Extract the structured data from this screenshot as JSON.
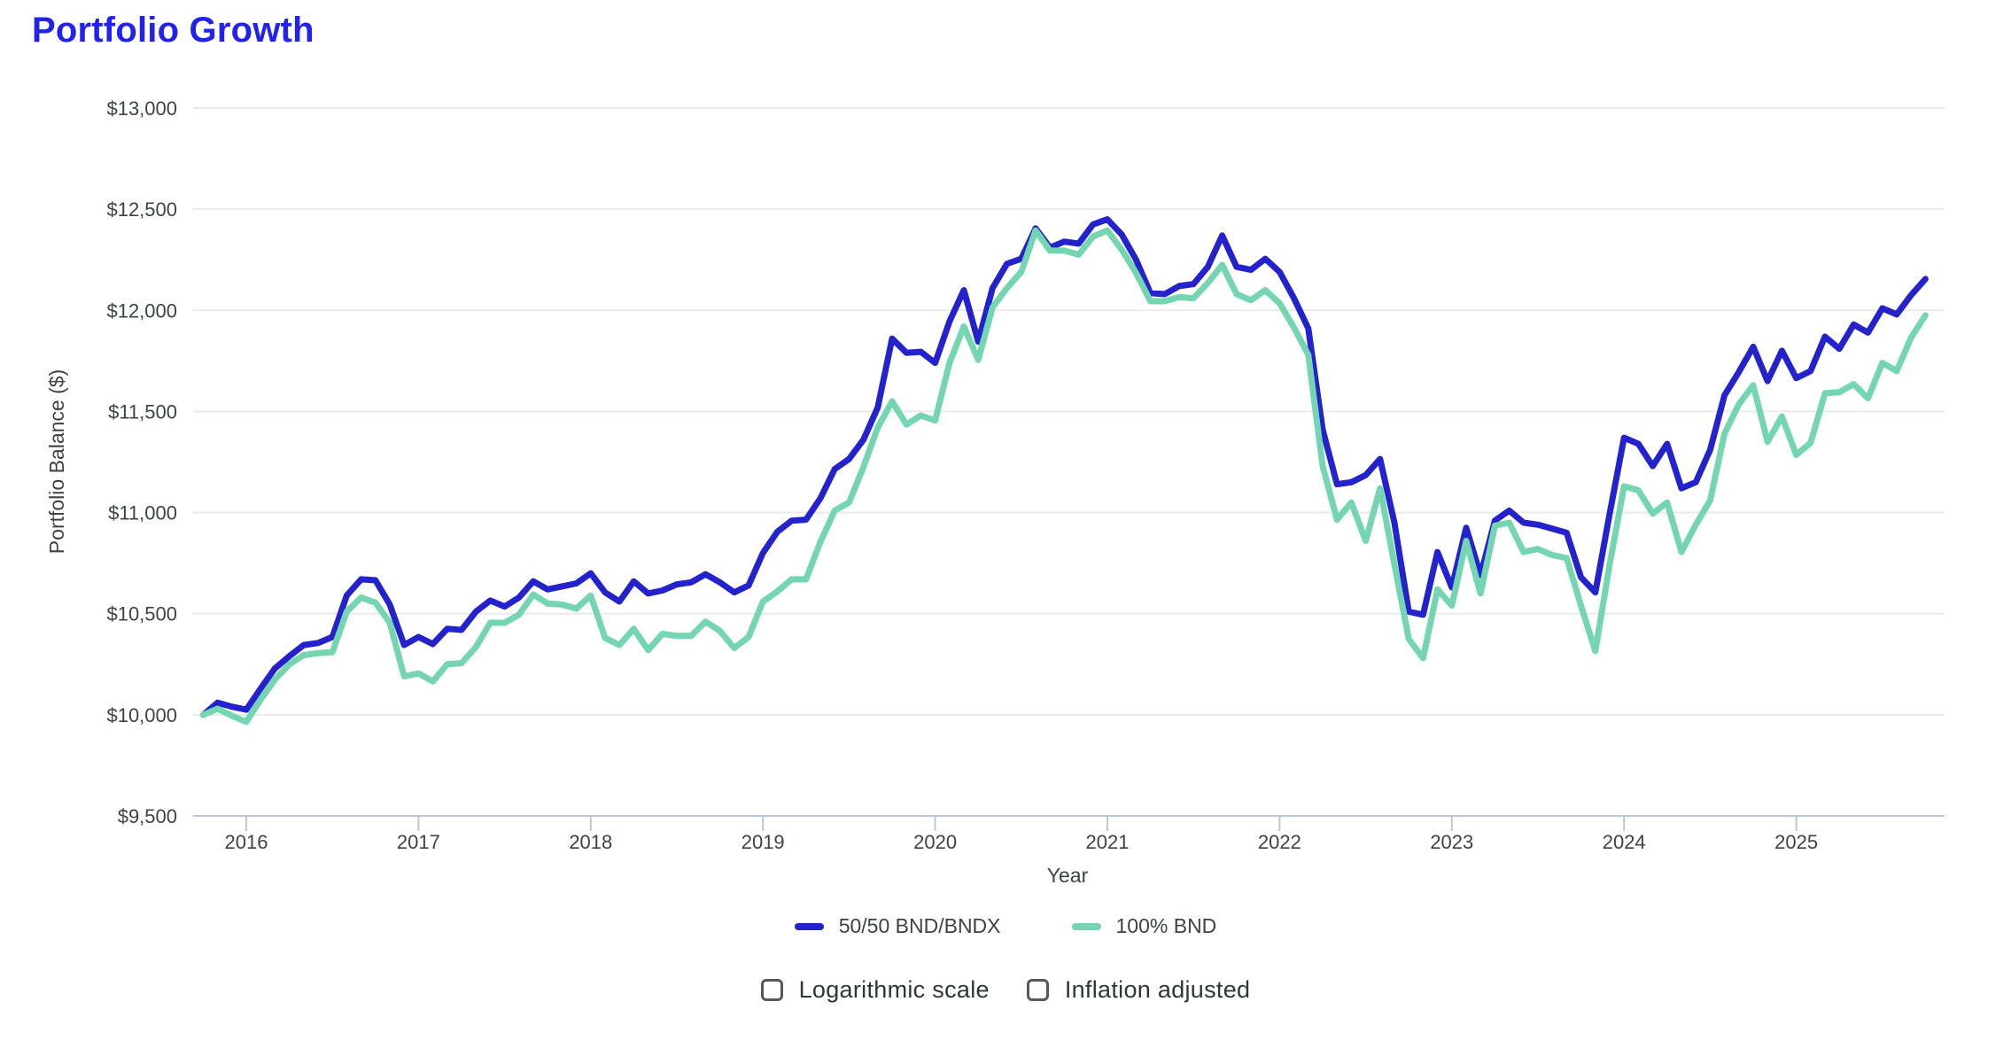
{
  "title": "Portfolio Growth",
  "colors": {
    "title": "#2222f0",
    "axis_text": "#3d4249",
    "axis_line": "#bac6dc",
    "grid_line": "#eaeaea",
    "background": "#ffffff",
    "series_blue": "#2322cd",
    "series_teal": "#73d6b0"
  },
  "chart_data": {
    "type": "line",
    "title": "Portfolio Growth",
    "xlabel": "Year",
    "ylabel": "Portfolio Balance ($)",
    "ylim": [
      9500,
      13000
    ],
    "grid": true,
    "legend_position": "bottom",
    "x_start": "2015-10",
    "x_end": "2025-10",
    "x_frequency": "monthly",
    "y_ticks": [
      {
        "value": 13000,
        "label": "$13,000"
      },
      {
        "value": 12500,
        "label": "$12,500"
      },
      {
        "value": 12000,
        "label": "$12,000"
      },
      {
        "value": 11500,
        "label": "$11,500"
      },
      {
        "value": 11000,
        "label": "$11,000"
      },
      {
        "value": 10500,
        "label": "$10,500"
      },
      {
        "value": 10000,
        "label": "$10,000"
      },
      {
        "value": 9500,
        "label": "$9,500"
      }
    ],
    "x_ticks": [
      {
        "index": 3,
        "label": "2016"
      },
      {
        "index": 15,
        "label": "2017"
      },
      {
        "index": 27,
        "label": "2018"
      },
      {
        "index": 39,
        "label": "2019"
      },
      {
        "index": 51,
        "label": "2020"
      },
      {
        "index": 63,
        "label": "2021"
      },
      {
        "index": 75,
        "label": "2022"
      },
      {
        "index": 87,
        "label": "2023"
      },
      {
        "index": 99,
        "label": "2024"
      },
      {
        "index": 111,
        "label": "2025"
      }
    ],
    "series": [
      {
        "name": "50/50 BND/BNDX",
        "color": "#2322cd",
        "values": [
          10000,
          10060,
          10040,
          10025,
          10130,
          10230,
          10290,
          10345,
          10355,
          10385,
          10590,
          10670,
          10665,
          10545,
          10345,
          10385,
          10350,
          10425,
          10420,
          10510,
          10565,
          10535,
          10580,
          10660,
          10620,
          10635,
          10650,
          10700,
          10605,
          10560,
          10660,
          10600,
          10615,
          10645,
          10655,
          10695,
          10655,
          10605,
          10640,
          10800,
          10905,
          10960,
          10965,
          11070,
          11215,
          11265,
          11360,
          11520,
          11860,
          11790,
          11795,
          11740,
          11945,
          12100,
          11845,
          12110,
          12230,
          12255,
          12405,
          12310,
          12340,
          12330,
          12425,
          12450,
          12375,
          12250,
          12085,
          12080,
          12120,
          12130,
          12215,
          12370,
          12215,
          12200,
          12255,
          12190,
          12060,
          11910,
          11410,
          11140,
          11150,
          11185,
          11265,
          10950,
          10510,
          10495,
          10805,
          10630,
          10925,
          10690,
          10960,
          11010,
          10950,
          10940,
          10920,
          10900,
          10680,
          10605,
          10995,
          11370,
          11340,
          11230,
          11340,
          11120,
          11150,
          11310,
          11580,
          11695,
          11820,
          11650,
          11800,
          11665,
          11700,
          11870,
          11810,
          11930,
          11890,
          12010,
          11980,
          12075,
          12155
        ]
      },
      {
        "name": "100% BND",
        "color": "#73d6b0",
        "values": [
          10000,
          10030,
          9995,
          9965,
          10075,
          10175,
          10250,
          10295,
          10305,
          10310,
          10510,
          10580,
          10555,
          10455,
          10190,
          10205,
          10165,
          10250,
          10255,
          10335,
          10455,
          10455,
          10495,
          10595,
          10550,
          10545,
          10525,
          10590,
          10380,
          10345,
          10425,
          10320,
          10400,
          10390,
          10390,
          10460,
          10415,
          10330,
          10385,
          10560,
          10610,
          10670,
          10670,
          10855,
          11010,
          11050,
          11225,
          11420,
          11550,
          11435,
          11480,
          11455,
          11740,
          11920,
          11755,
          12015,
          12110,
          12190,
          12395,
          12295,
          12295,
          12275,
          12365,
          12395,
          12300,
          12185,
          12045,
          12045,
          12065,
          12060,
          12135,
          12225,
          12080,
          12050,
          12100,
          12035,
          11915,
          11780,
          11230,
          10965,
          11050,
          10860,
          11120,
          10745,
          10375,
          10280,
          10620,
          10540,
          10860,
          10600,
          10935,
          10950,
          10805,
          10820,
          10790,
          10775,
          10540,
          10315,
          10745,
          11130,
          11110,
          10995,
          11050,
          10805,
          10940,
          11060,
          11390,
          11535,
          11630,
          11350,
          11475,
          11285,
          11345,
          11590,
          11595,
          11635,
          11565,
          11740,
          11700,
          11865,
          11975
        ]
      }
    ]
  },
  "legend": {
    "items": [
      {
        "label": "50/50 BND/BNDX",
        "color": "#2322cd"
      },
      {
        "label": "100% BND",
        "color": "#73d6b0"
      }
    ]
  },
  "controls": {
    "checkboxes": [
      {
        "label": "Logarithmic scale",
        "checked": false
      },
      {
        "label": "Inflation adjusted",
        "checked": false
      }
    ]
  }
}
